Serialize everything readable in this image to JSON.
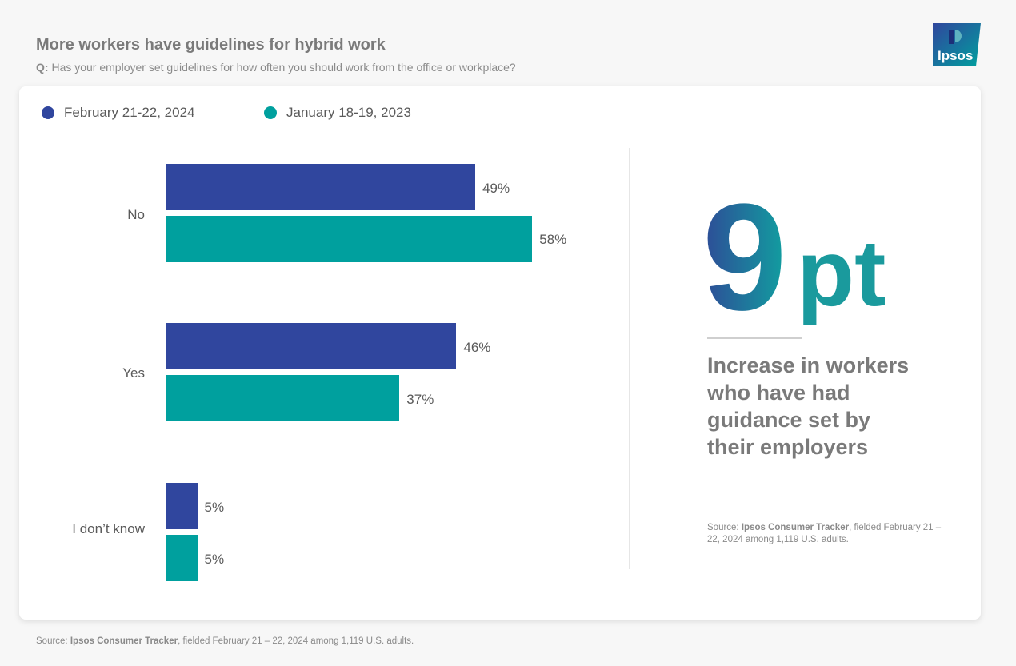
{
  "header": {
    "title": "More workers have guidelines for hybrid work",
    "q_label": "Q:",
    "question": "Has your employer set guidelines for how often you should work from the office or workplace?"
  },
  "logo": {
    "text": "Ipsos",
    "icon": "ipsos-logo"
  },
  "colors": {
    "series1": "#30469e",
    "series2": "#00a09e",
    "accent_dark": "#2e4b97",
    "accent_light": "#1a9a9d"
  },
  "chart_data": {
    "type": "bar",
    "orientation": "horizontal",
    "categories": [
      "No",
      "Yes",
      "I don’t know"
    ],
    "series": [
      {
        "name": "February 21-22, 2024",
        "values": [
          49,
          46,
          5
        ],
        "labels": [
          "49%",
          "46%",
          "5%"
        ]
      },
      {
        "name": "January 18-19, 2023",
        "values": [
          58,
          37,
          5
        ],
        "labels": [
          "58%",
          "37%",
          "5%"
        ]
      }
    ],
    "xlim": [
      0,
      100
    ],
    "legend_position": "top-left",
    "unit": "%"
  },
  "highlight": {
    "number": "9",
    "suffix": "pt",
    "description": "Increase in workers who have had guidance set by their employers",
    "source_prefix": "Source:",
    "source_name": "Ipsos Consumer Tracker",
    "source_rest": ", fielded February 21 – 22, 2024 among 1,119 U.S. adults."
  },
  "footer": {
    "source_prefix": "Source:",
    "source_name": "Ipsos Consumer Tracker",
    "source_rest": ", fielded February 21 – 22, 2024 among 1,119 U.S. adults."
  }
}
